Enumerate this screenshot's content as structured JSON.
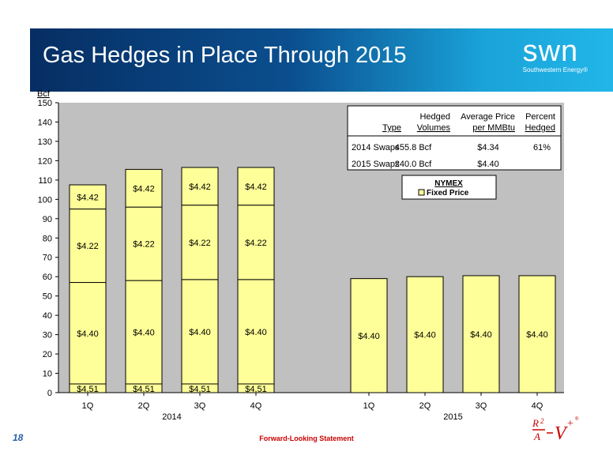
{
  "header": {
    "title": "Gas Hedges in Place Through 2015"
  },
  "logo": {
    "word": "swn",
    "tagline": "Southwestern Energy®"
  },
  "footer": {
    "page_number": "18",
    "statement": "Forward-Looking Statement"
  },
  "colors": {
    "bar_fill": "#ffff99",
    "plot_bg": "#c0c0c0",
    "banner_dark": "#062e63",
    "banner_light": "#22b6e8",
    "footer_red": "#cc0000"
  },
  "chart_data": {
    "type": "bar",
    "stacked": true,
    "ylabel": "Bcf",
    "ylim": [
      0,
      150
    ],
    "yticks": [
      0,
      10,
      20,
      30,
      40,
      50,
      60,
      70,
      80,
      90,
      100,
      110,
      120,
      130,
      140,
      150
    ],
    "grid": false,
    "groups": [
      {
        "label": "2014",
        "categories": [
          "1Q",
          "2Q",
          "3Q",
          "4Q"
        ]
      },
      {
        "label": "2015",
        "categories": [
          "1Q",
          "2Q",
          "3Q",
          "4Q"
        ]
      }
    ],
    "bars": [
      {
        "group": "2014",
        "category": "1Q",
        "segments": [
          {
            "value": 4.5,
            "label": "$4.51"
          },
          {
            "value": 52.5,
            "label": "$4.40"
          },
          {
            "value": 38,
            "label": "$4.22"
          },
          {
            "value": 12.5,
            "label": "$4.42"
          }
        ]
      },
      {
        "group": "2014",
        "category": "2Q",
        "segments": [
          {
            "value": 4.5,
            "label": "$4.51"
          },
          {
            "value": 53.5,
            "label": "$4.40"
          },
          {
            "value": 38,
            "label": "$4.22"
          },
          {
            "value": 19.5,
            "label": "$4.42"
          }
        ]
      },
      {
        "group": "2014",
        "category": "3Q",
        "segments": [
          {
            "value": 4.5,
            "label": "$4.51"
          },
          {
            "value": 54,
            "label": "$4.40"
          },
          {
            "value": 38.5,
            "label": "$4.22"
          },
          {
            "value": 19.5,
            "label": "$4.42"
          }
        ]
      },
      {
        "group": "2014",
        "category": "4Q",
        "segments": [
          {
            "value": 4.5,
            "label": "$4.51"
          },
          {
            "value": 54,
            "label": "$4.40"
          },
          {
            "value": 38.5,
            "label": "$4.22"
          },
          {
            "value": 19.5,
            "label": "$4.42"
          }
        ]
      },
      {
        "group": "2015",
        "category": "1Q",
        "segments": [
          {
            "value": 59,
            "label": "$4.40"
          }
        ]
      },
      {
        "group": "2015",
        "category": "2Q",
        "segments": [
          {
            "value": 60,
            "label": "$4.40"
          }
        ]
      },
      {
        "group": "2015",
        "category": "3Q",
        "segments": [
          {
            "value": 60.5,
            "label": "$4.40"
          }
        ]
      },
      {
        "group": "2015",
        "category": "4Q",
        "segments": [
          {
            "value": 60.5,
            "label": "$4.40"
          }
        ]
      }
    ],
    "legend": {
      "title": "NYMEX",
      "items": [
        "Fixed Price"
      ],
      "placement": "top-right"
    },
    "table": {
      "headers": [
        [
          "",
          "Type"
        ],
        [
          "Hedged",
          "Volumes"
        ],
        [
          "Average Price",
          "per MMBtu"
        ],
        [
          "Percent",
          "Hedged"
        ]
      ],
      "rows": [
        [
          "2014 Swaps",
          "455.8 Bcf",
          "$4.34",
          "61%"
        ],
        [
          "2015 Swaps",
          "240.0 Bcf",
          "$4.40",
          ""
        ]
      ]
    }
  }
}
